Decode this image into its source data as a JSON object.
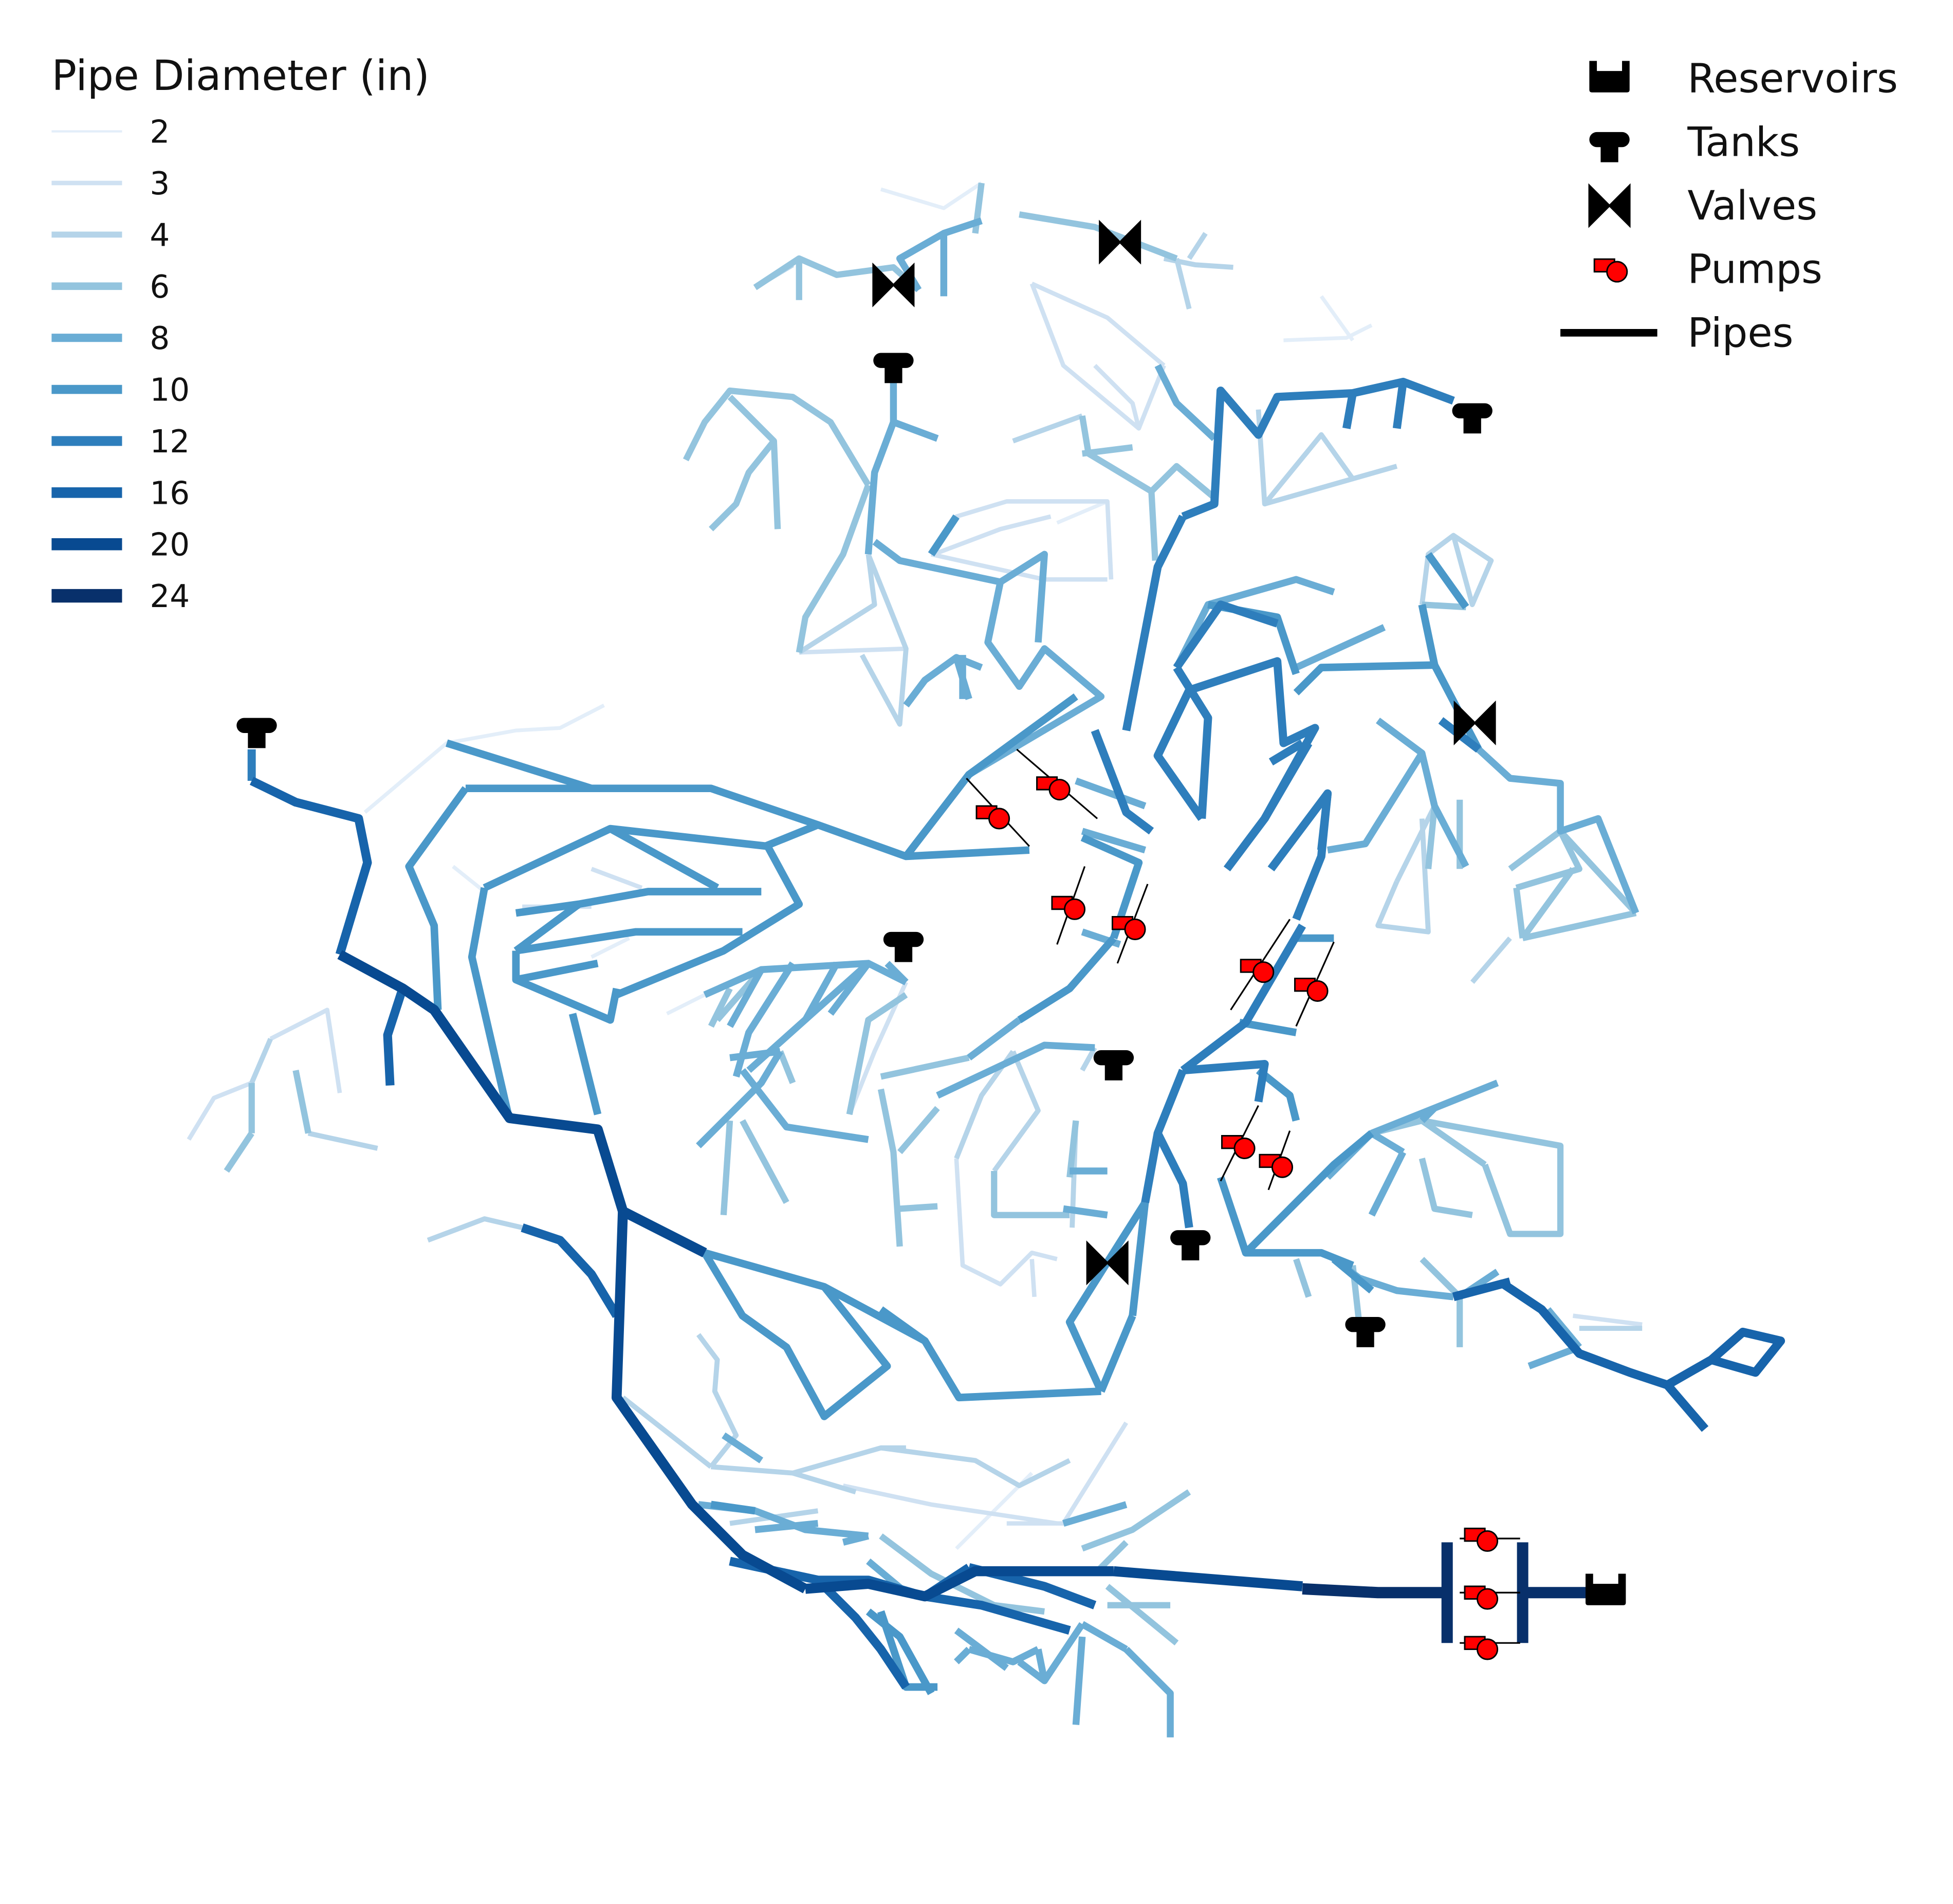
{
  "diameter_legend": {
    "title": "Pipe Diameter (in)",
    "items": [
      {
        "label": "2",
        "color": "#e3eef9"
      },
      {
        "label": "3",
        "color": "#cfe1f2"
      },
      {
        "label": "4",
        "color": "#b5d4e9"
      },
      {
        "label": "6",
        "color": "#93c4de"
      },
      {
        "label": "8",
        "color": "#6aadd5"
      },
      {
        "label": "10",
        "color": "#4a98c9"
      },
      {
        "label": "12",
        "color": "#2e7ebc"
      },
      {
        "label": "16",
        "color": "#1764ab"
      },
      {
        "label": "20",
        "color": "#084a91"
      },
      {
        "label": "24",
        "color": "#08306b"
      }
    ]
  },
  "symbol_legend": {
    "items": [
      {
        "label": "Reservoirs",
        "icon": "reservoir-icon"
      },
      {
        "label": "Tanks",
        "icon": "tank-icon"
      },
      {
        "label": "Valves",
        "icon": "valve-icon"
      },
      {
        "label": "Pumps",
        "icon": "pump-icon"
      },
      {
        "label": "Pipes",
        "icon": "pipe-icon"
      }
    ]
  },
  "colors": {
    "pump_fill": "#ff0000",
    "symbol": "#000000",
    "pipe_legend": "#000000"
  }
}
